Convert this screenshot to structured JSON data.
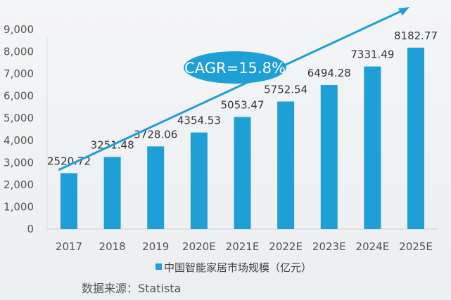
{
  "chart_data": {
    "type": "bar",
    "categories": [
      "2017",
      "2018",
      "2019",
      "2020E",
      "2021E",
      "2022E",
      "2023E",
      "2024E",
      "2025E"
    ],
    "series": [
      {
        "name": "中国智能家居市场规模（亿元）",
        "values": [
          2520.72,
          3251.48,
          3728.06,
          4354.53,
          5053.47,
          5752.54,
          6494.28,
          7331.49,
          8182.77
        ]
      }
    ],
    "value_labels": [
      "2520.72",
      "3251.48",
      "3728.06",
      "4354.53",
      "5053.47",
      "5752.54",
      "6494.28",
      "7331.49",
      "8182.77"
    ],
    "yticks": [
      "0",
      "1,000",
      "2,000",
      "3,000",
      "4,000",
      "5,000",
      "6,000",
      "7,000",
      "8,000",
      "9,000"
    ],
    "ylim": [
      0,
      9000
    ],
    "annotation": "CAGR=15.8%",
    "legend_position": "bottom",
    "grid": false,
    "source": "数据来源：Statista",
    "colors": {
      "bar": "#1e9fd6",
      "arrow": "#1e9fd6"
    }
  }
}
